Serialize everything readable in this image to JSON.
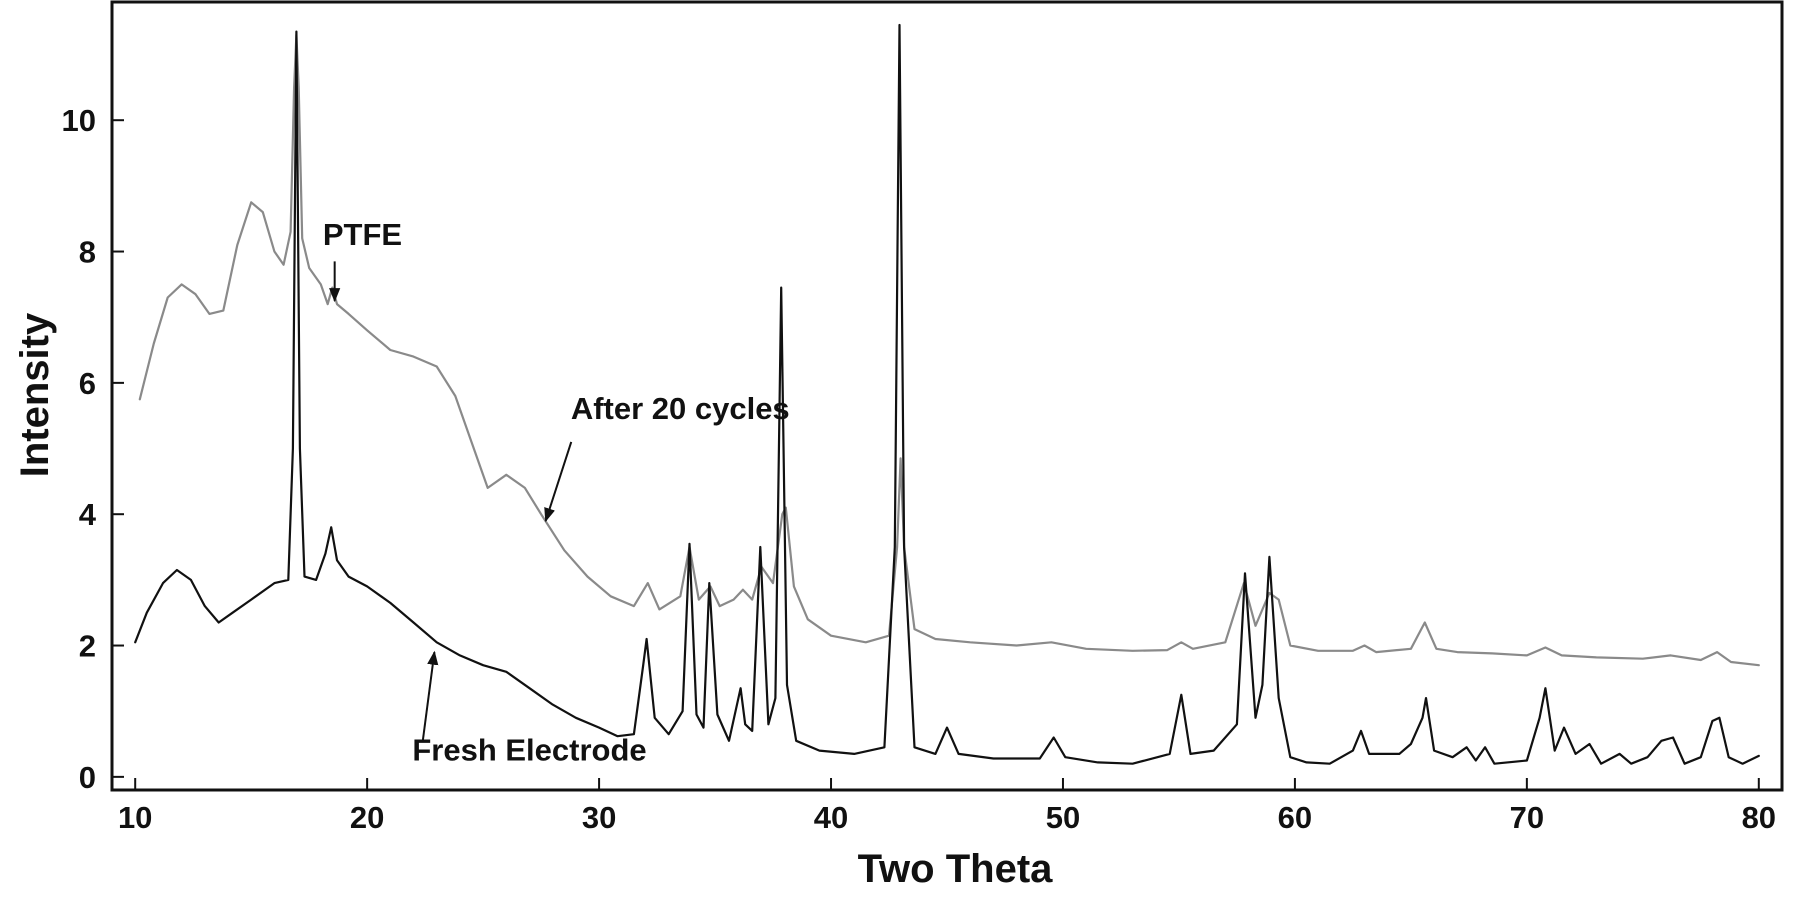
{
  "chart_data": {
    "type": "line",
    "xlabel": "Two Theta",
    "ylabel": "Intensity",
    "xlim": [
      9,
      81
    ],
    "ylim": [
      -0.2,
      11.8
    ],
    "xticks": [
      10,
      20,
      30,
      40,
      50,
      60,
      70,
      80
    ],
    "yticks": [
      0,
      2,
      4,
      6,
      8,
      10
    ],
    "grid": false,
    "series": [
      {
        "name": "After 20 cycles",
        "color": "#8a8a8a",
        "points": [
          [
            10.2,
            5.75
          ],
          [
            10.8,
            6.6
          ],
          [
            11.4,
            7.3
          ],
          [
            12.0,
            7.5
          ],
          [
            12.6,
            7.35
          ],
          [
            13.2,
            7.05
          ],
          [
            13.8,
            7.1
          ],
          [
            14.4,
            8.1
          ],
          [
            15.0,
            8.75
          ],
          [
            15.5,
            8.6
          ],
          [
            16.0,
            8.0
          ],
          [
            16.4,
            7.8
          ],
          [
            16.7,
            8.3
          ],
          [
            16.85,
            10.5
          ],
          [
            16.95,
            11.3
          ],
          [
            17.05,
            10.5
          ],
          [
            17.2,
            8.2
          ],
          [
            17.5,
            7.75
          ],
          [
            18.0,
            7.5
          ],
          [
            18.3,
            7.2
          ],
          [
            18.5,
            7.45
          ],
          [
            18.7,
            7.2
          ],
          [
            19.2,
            7.05
          ],
          [
            20.0,
            6.8
          ],
          [
            21.0,
            6.5
          ],
          [
            22.0,
            6.4
          ],
          [
            23.0,
            6.25
          ],
          [
            23.8,
            5.8
          ],
          [
            24.5,
            5.1
          ],
          [
            25.2,
            4.4
          ],
          [
            26.0,
            4.6
          ],
          [
            26.8,
            4.4
          ],
          [
            27.5,
            4.0
          ],
          [
            28.5,
            3.45
          ],
          [
            29.5,
            3.05
          ],
          [
            30.5,
            2.75
          ],
          [
            31.5,
            2.6
          ],
          [
            32.1,
            2.95
          ],
          [
            32.6,
            2.55
          ],
          [
            33.5,
            2.75
          ],
          [
            33.9,
            3.5
          ],
          [
            34.3,
            2.7
          ],
          [
            34.8,
            2.9
          ],
          [
            35.2,
            2.6
          ],
          [
            35.8,
            2.7
          ],
          [
            36.2,
            2.85
          ],
          [
            36.6,
            2.7
          ],
          [
            37.0,
            3.2
          ],
          [
            37.5,
            2.95
          ],
          [
            37.9,
            4.0
          ],
          [
            38.05,
            4.1
          ],
          [
            38.4,
            2.9
          ],
          [
            39.0,
            2.4
          ],
          [
            40.0,
            2.15
          ],
          [
            41.5,
            2.05
          ],
          [
            42.5,
            2.15
          ],
          [
            42.85,
            3.5
          ],
          [
            43.0,
            4.85
          ],
          [
            43.15,
            3.5
          ],
          [
            43.6,
            2.25
          ],
          [
            44.5,
            2.1
          ],
          [
            46.0,
            2.05
          ],
          [
            48.0,
            2.0
          ],
          [
            49.5,
            2.05
          ],
          [
            51.0,
            1.95
          ],
          [
            53.0,
            1.92
          ],
          [
            54.5,
            1.93
          ],
          [
            55.1,
            2.05
          ],
          [
            55.6,
            1.95
          ],
          [
            57.0,
            2.05
          ],
          [
            57.8,
            2.95
          ],
          [
            58.3,
            2.3
          ],
          [
            58.9,
            2.8
          ],
          [
            59.3,
            2.7
          ],
          [
            59.8,
            2.0
          ],
          [
            61.0,
            1.92
          ],
          [
            62.5,
            1.92
          ],
          [
            63.0,
            2.0
          ],
          [
            63.5,
            1.9
          ],
          [
            65.0,
            1.95
          ],
          [
            65.6,
            2.35
          ],
          [
            66.1,
            1.95
          ],
          [
            67.0,
            1.9
          ],
          [
            68.5,
            1.88
          ],
          [
            70.0,
            1.85
          ],
          [
            70.8,
            1.97
          ],
          [
            71.5,
            1.85
          ],
          [
            73.0,
            1.82
          ],
          [
            75.0,
            1.8
          ],
          [
            76.2,
            1.85
          ],
          [
            77.5,
            1.78
          ],
          [
            78.2,
            1.9
          ],
          [
            78.8,
            1.75
          ],
          [
            80.0,
            1.7
          ]
        ]
      },
      {
        "name": "Fresh Electrode",
        "color": "#111111",
        "points": [
          [
            10.0,
            2.05
          ],
          [
            10.5,
            2.5
          ],
          [
            11.2,
            2.95
          ],
          [
            11.8,
            3.15
          ],
          [
            12.4,
            3.0
          ],
          [
            13.0,
            2.6
          ],
          [
            13.6,
            2.35
          ],
          [
            14.2,
            2.5
          ],
          [
            15.0,
            2.7
          ],
          [
            16.0,
            2.95
          ],
          [
            16.6,
            3.0
          ],
          [
            16.8,
            5.0
          ],
          [
            16.95,
            11.35
          ],
          [
            17.1,
            5.0
          ],
          [
            17.3,
            3.05
          ],
          [
            17.8,
            3.0
          ],
          [
            18.2,
            3.4
          ],
          [
            18.45,
            3.8
          ],
          [
            18.7,
            3.3
          ],
          [
            19.2,
            3.05
          ],
          [
            20.0,
            2.9
          ],
          [
            21.0,
            2.65
          ],
          [
            22.0,
            2.35
          ],
          [
            23.0,
            2.05
          ],
          [
            24.0,
            1.85
          ],
          [
            25.0,
            1.7
          ],
          [
            26.0,
            1.6
          ],
          [
            27.0,
            1.35
          ],
          [
            28.0,
            1.1
          ],
          [
            29.0,
            0.9
          ],
          [
            30.0,
            0.75
          ],
          [
            30.8,
            0.62
          ],
          [
            31.5,
            0.65
          ],
          [
            31.9,
            1.7
          ],
          [
            32.05,
            2.1
          ],
          [
            32.4,
            0.9
          ],
          [
            33.0,
            0.65
          ],
          [
            33.6,
            1.0
          ],
          [
            33.9,
            3.55
          ],
          [
            34.2,
            0.95
          ],
          [
            34.5,
            0.75
          ],
          [
            34.75,
            2.95
          ],
          [
            35.1,
            0.95
          ],
          [
            35.6,
            0.55
          ],
          [
            36.1,
            1.35
          ],
          [
            36.3,
            0.8
          ],
          [
            36.6,
            0.7
          ],
          [
            36.95,
            3.5
          ],
          [
            37.3,
            0.8
          ],
          [
            37.6,
            1.2
          ],
          [
            37.85,
            7.45
          ],
          [
            38.1,
            1.4
          ],
          [
            38.5,
            0.55
          ],
          [
            39.5,
            0.4
          ],
          [
            41.0,
            0.35
          ],
          [
            42.3,
            0.45
          ],
          [
            42.75,
            3.5
          ],
          [
            42.95,
            11.45
          ],
          [
            43.15,
            3.5
          ],
          [
            43.6,
            0.45
          ],
          [
            44.5,
            0.35
          ],
          [
            45.0,
            0.75
          ],
          [
            45.5,
            0.35
          ],
          [
            47.0,
            0.28
          ],
          [
            49.0,
            0.28
          ],
          [
            49.6,
            0.6
          ],
          [
            50.1,
            0.3
          ],
          [
            51.5,
            0.22
          ],
          [
            53.0,
            0.2
          ],
          [
            54.6,
            0.35
          ],
          [
            55.1,
            1.25
          ],
          [
            55.5,
            0.35
          ],
          [
            56.5,
            0.4
          ],
          [
            57.5,
            0.8
          ],
          [
            57.85,
            3.1
          ],
          [
            58.3,
            0.9
          ],
          [
            58.6,
            1.4
          ],
          [
            58.9,
            3.35
          ],
          [
            59.3,
            1.2
          ],
          [
            59.8,
            0.3
          ],
          [
            60.5,
            0.22
          ],
          [
            61.5,
            0.2
          ],
          [
            62.5,
            0.4
          ],
          [
            62.85,
            0.7
          ],
          [
            63.2,
            0.35
          ],
          [
            64.5,
            0.35
          ],
          [
            65.0,
            0.5
          ],
          [
            65.5,
            0.9
          ],
          [
            65.65,
            1.2
          ],
          [
            66.0,
            0.4
          ],
          [
            66.8,
            0.3
          ],
          [
            67.4,
            0.45
          ],
          [
            67.8,
            0.25
          ],
          [
            68.2,
            0.45
          ],
          [
            68.6,
            0.2
          ],
          [
            70.0,
            0.25
          ],
          [
            70.55,
            0.9
          ],
          [
            70.8,
            1.35
          ],
          [
            71.2,
            0.4
          ],
          [
            71.6,
            0.75
          ],
          [
            72.1,
            0.35
          ],
          [
            72.7,
            0.5
          ],
          [
            73.2,
            0.2
          ],
          [
            74.0,
            0.35
          ],
          [
            74.5,
            0.2
          ],
          [
            75.2,
            0.3
          ],
          [
            75.8,
            0.55
          ],
          [
            76.3,
            0.6
          ],
          [
            76.8,
            0.2
          ],
          [
            77.5,
            0.3
          ],
          [
            78.0,
            0.85
          ],
          [
            78.3,
            0.9
          ],
          [
            78.7,
            0.3
          ],
          [
            79.3,
            0.2
          ],
          [
            80.0,
            0.32
          ]
        ]
      }
    ],
    "annotations": [
      {
        "text": "PTFE",
        "label_at": [
          19.8,
          8.1
        ],
        "arrow_from": [
          18.6,
          7.85
        ],
        "arrow_to": [
          18.6,
          7.25
        ]
      },
      {
        "text": "After 20 cycles",
        "label_at": [
          33.5,
          5.45
        ],
        "arrow_from": [
          28.8,
          5.1
        ],
        "arrow_to": [
          27.7,
          3.9
        ]
      },
      {
        "text": "Fresh Electrode",
        "label_at": [
          27.0,
          0.25
        ],
        "arrow_from": [
          22.4,
          0.55
        ],
        "arrow_to": [
          22.9,
          1.9
        ]
      }
    ]
  }
}
